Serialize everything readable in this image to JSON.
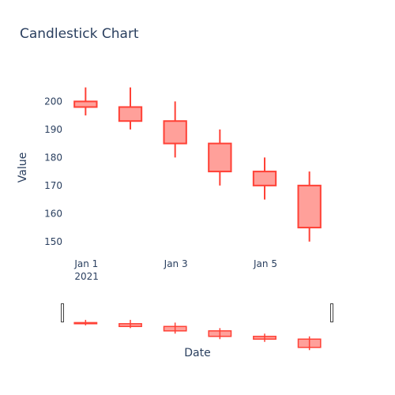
{
  "chart_data": {
    "type": "candlestick",
    "title": "Candlestick Chart",
    "xlabel": "Date",
    "ylabel": "Value",
    "x_tick_labels": [
      {
        "date": "2021-01-01",
        "line1": "Jan 1",
        "line2": "2021"
      },
      {
        "date": "2021-01-03",
        "line1": "Jan 3",
        "line2": ""
      },
      {
        "date": "2021-01-05",
        "line1": "Jan 5",
        "line2": ""
      }
    ],
    "y_ticks": [
      150,
      160,
      170,
      180,
      190,
      200
    ],
    "ylim": [
      146,
      208
    ],
    "xlim": [
      "2020-12-31T12:00",
      "2021-01-06T12:00"
    ],
    "increasing_color": "#3d9970",
    "decreasing_color": "#ff4136",
    "candles": [
      {
        "date": "2021-01-01",
        "open": 200,
        "high": 205,
        "low": 195,
        "close": 198
      },
      {
        "date": "2021-01-02",
        "open": 198,
        "high": 205,
        "low": 190,
        "close": 193
      },
      {
        "date": "2021-01-03",
        "open": 193,
        "high": 200,
        "low": 180,
        "close": 185
      },
      {
        "date": "2021-01-04",
        "open": 185,
        "high": 190,
        "low": 170,
        "close": 175
      },
      {
        "date": "2021-01-05",
        "open": 175,
        "high": 180,
        "low": 165,
        "close": 170
      },
      {
        "date": "2021-01-06",
        "open": 170,
        "high": 175,
        "low": 150,
        "close": 155
      }
    ],
    "rangeslider": true
  }
}
